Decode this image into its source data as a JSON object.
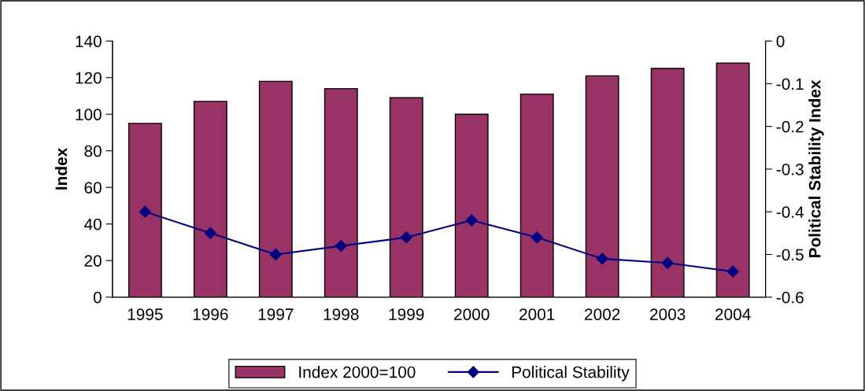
{
  "chart_data": {
    "type": "bar",
    "ylabel": "Index",
    "y2label": "Political Stability Index",
    "categories": [
      "1995",
      "1996",
      "1997",
      "1998",
      "1999",
      "2000",
      "2001",
      "2002",
      "2003",
      "2004"
    ],
    "series": [
      {
        "name": "Index 2000=100",
        "color": "#993366",
        "values": [
          95,
          107,
          118,
          114,
          109,
          100,
          111,
          121,
          125,
          128
        ]
      },
      {
        "name": "Political Stability",
        "type": "line",
        "axis": "y2",
        "color": "#000080",
        "marker": "diamond",
        "line_style": "solid",
        "values": [
          -0.4,
          -0.45,
          -0.5,
          -0.48,
          -0.46,
          -0.42,
          -0.46,
          -0.51,
          -0.52,
          -0.54
        ]
      }
    ],
    "ylim": [
      0,
      140
    ],
    "yticks": [
      0,
      20,
      40,
      60,
      80,
      100,
      120,
      140
    ],
    "y2lim": [
      -0.6,
      0
    ],
    "y2ticks": [
      {
        "value": -0.6,
        "label": "-0.6"
      },
      {
        "value": -0.5,
        "label": "-0.5"
      },
      {
        "value": -0.4,
        "label": "-0.4"
      },
      {
        "value": -0.3,
        "label": "-0.3"
      },
      {
        "value": -0.2,
        "label": "-0.2"
      },
      {
        "value": -0.1,
        "label": "-0.1"
      },
      0
    ],
    "grid": false,
    "legend": "bottom"
  }
}
